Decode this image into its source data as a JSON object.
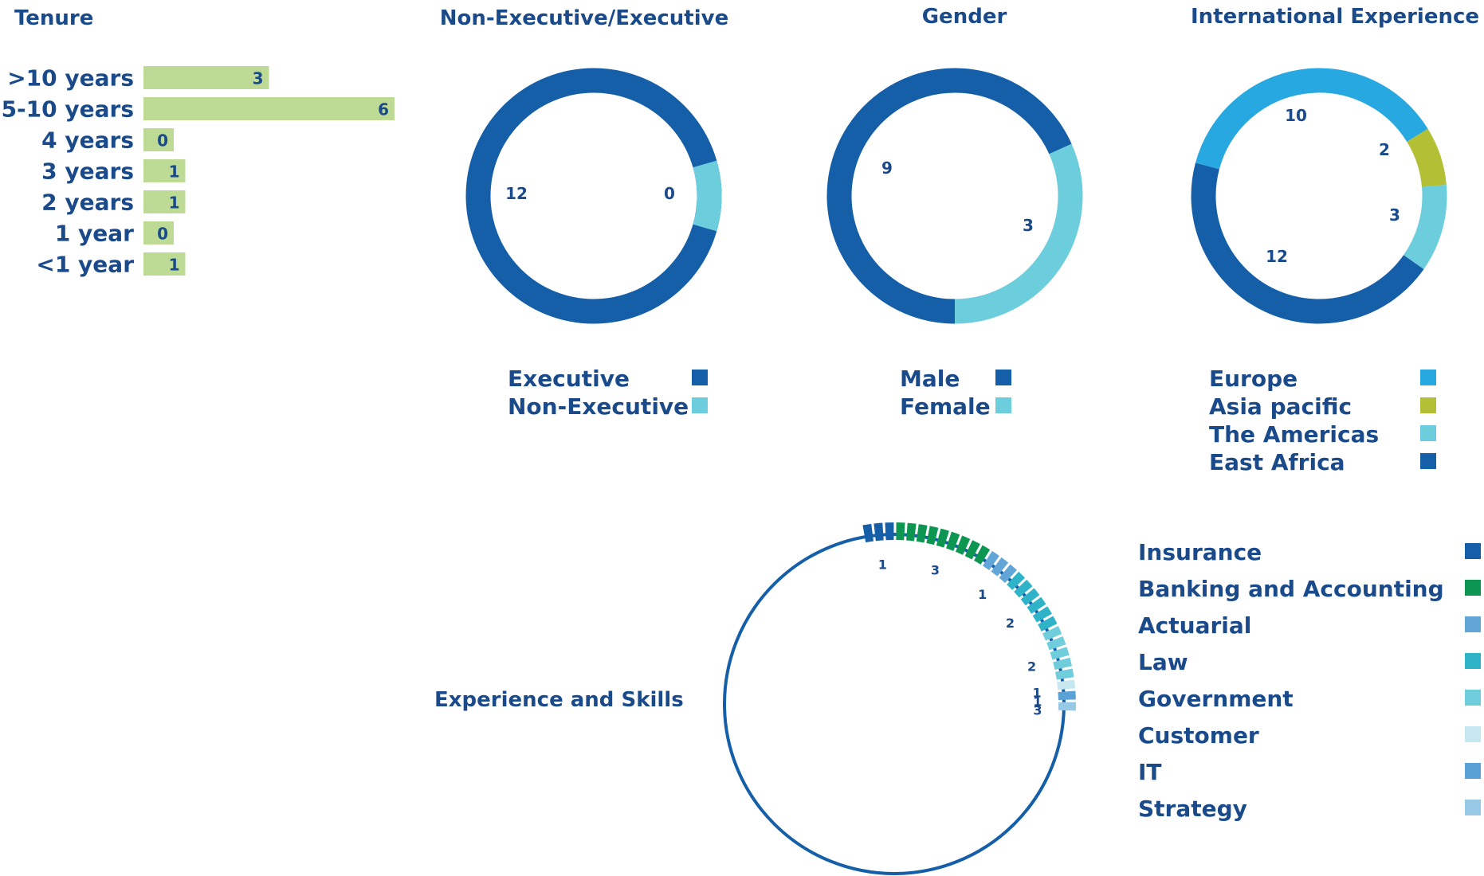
{
  "chart_data": [
    {
      "type": "bar",
      "title": "Tenure",
      "orientation": "horizontal",
      "categories": [
        ">10 years",
        "5-10 years",
        "4 years",
        "3 years",
        "2 years",
        "1 year",
        "<1 year"
      ],
      "values": [
        3,
        6,
        0,
        1,
        1,
        0,
        1
      ],
      "color": "#bddb95"
    },
    {
      "type": "pie",
      "title": "Non-Executive/Executive",
      "donut": true,
      "slices": [
        {
          "name": "Executive",
          "value": 12,
          "label": "12",
          "color": "#155ea8"
        },
        {
          "name": "Non-Executive",
          "value": 0,
          "label": "0",
          "color": "#6ccedc"
        }
      ]
    },
    {
      "type": "pie",
      "title": "Gender",
      "donut": true,
      "slices": [
        {
          "name": "Male",
          "value": 9,
          "label": "9",
          "color": "#155ea8"
        },
        {
          "name": "Female",
          "value": 3,
          "label": "3",
          "color": "#6ccedc"
        }
      ]
    },
    {
      "type": "pie",
      "title": "International Experience",
      "donut": true,
      "slices": [
        {
          "name": "Europe",
          "value": 10,
          "label": "10",
          "color": "#27a8e0"
        },
        {
          "name": "Asia pacific",
          "value": 2,
          "label": "2",
          "color": "#b3bf35"
        },
        {
          "name": "The Americas",
          "value": 3,
          "label": "3",
          "color": "#6ccedc"
        },
        {
          "name": "East Africa",
          "value": 12,
          "label": "12",
          "color": "#155ea8"
        }
      ]
    },
    {
      "type": "pie",
      "title": "Experience and Skills",
      "style": "segmented-ring",
      "slices": [
        {
          "name": "Insurance",
          "value": 1,
          "label": "1",
          "color": "#155ea8"
        },
        {
          "name": "Banking and Accounting",
          "value": 3,
          "label": "3",
          "color": "#0c9651"
        },
        {
          "name": "Actuarial",
          "value": 1,
          "label": "1",
          "color": "#62a6d8"
        },
        {
          "name": "Law",
          "value": 2,
          "label": "2",
          "color": "#2fb3c9"
        },
        {
          "name": "Government",
          "value": 2,
          "label": "2",
          "color": "#70cddb"
        },
        {
          "name": "Customer",
          "value": 1,
          "label": "1",
          "color": "#c6e7ef"
        },
        {
          "name": "IT",
          "value": 1,
          "label": "1",
          "color": "#5aa2d6"
        },
        {
          "name": "Strategy",
          "value": 3,
          "label": "3",
          "color": "#97c8e6"
        }
      ]
    }
  ]
}
